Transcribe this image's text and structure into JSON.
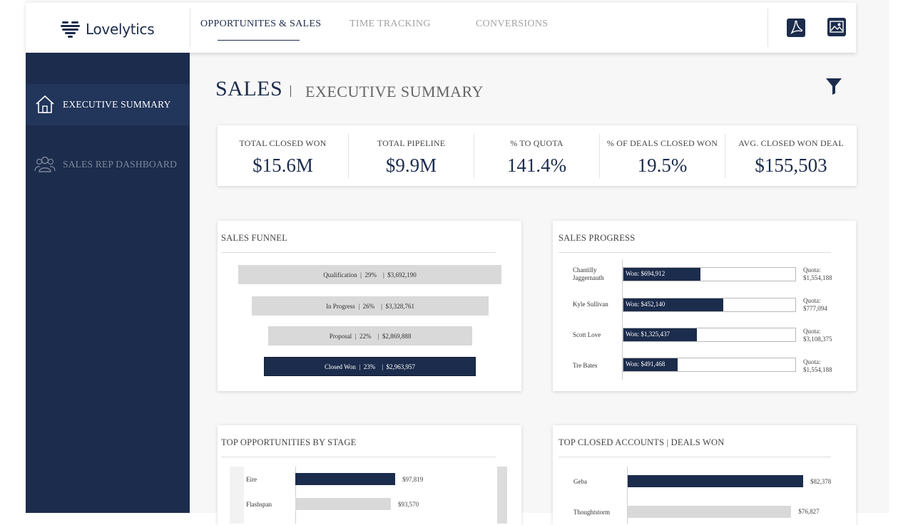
{
  "app": {
    "logo_text": "Lovelytics"
  },
  "nav": {
    "tabs": [
      {
        "label": "OPPORTUNITES & SALES",
        "active": true
      },
      {
        "label": "TIME TRACKING",
        "active": false
      },
      {
        "label": "CONVERSIONS",
        "active": false
      }
    ],
    "export_icons": [
      "pdf-icon",
      "image-icon"
    ]
  },
  "sidebar": {
    "items": [
      {
        "label": "EXECUTIVE SUMMARY",
        "icon": "home-icon",
        "active": true
      },
      {
        "label": "SALES REP DASHBOARD",
        "icon": "users-icon",
        "active": false
      }
    ]
  },
  "page": {
    "title": "SALES",
    "subtitle": "EXECUTIVE SUMMARY",
    "filter_icon": "filter-icon"
  },
  "kpis": [
    {
      "label": "TOTAL CLOSED WON",
      "value": "$15.6M"
    },
    {
      "label": "TOTAL PIPELINE",
      "value": "$9.9M"
    },
    {
      "label": "% TO QUOTA",
      "value": "141.4%"
    },
    {
      "label": "% OF DEALS CLOSED WON",
      "value": "19.5%"
    },
    {
      "label": "AVG. CLOSED WON DEAL",
      "value": "$155,503"
    }
  ],
  "funnel": {
    "title": "SALES FUNNEL",
    "stages": [
      {
        "stage": "Qualification",
        "pct": "29%",
        "amount": "$3,692,190",
        "highlight": false
      },
      {
        "stage": "In Progress",
        "pct": "26%",
        "amount": "$3,328,761",
        "highlight": false
      },
      {
        "stage": "Proposal",
        "pct": "22%",
        "amount": "$2,869,888",
        "highlight": false
      },
      {
        "stage": "Closed Won",
        "pct": "23%",
        "amount": "$2,963,957",
        "highlight": true
      }
    ]
  },
  "progress": {
    "title": "SALES PROGRESS",
    "reps": [
      {
        "name": "Chantilly Jaggernauth",
        "won": "Won: $694,912",
        "won_value": 694912,
        "quota_label": "Quota:",
        "quota": "$1,554,188",
        "quota_value": 1554188
      },
      {
        "name": "Kyle Sullivan",
        "won": "Won: $452,140",
        "won_value": 452140,
        "quota_label": "Quota:",
        "quota": "$777,094",
        "quota_value": 777094
      },
      {
        "name": "Scott Love",
        "won": "Won: $1,325,437",
        "won_value": 1325437,
        "quota_label": "Quota:",
        "quota": "$3,108,375",
        "quota_value": 3108375
      },
      {
        "name": "Tre Bates",
        "won": "Won: $491,468",
        "won_value": 491468,
        "quota_label": "Quota:",
        "quota": "$1,554,188",
        "quota_value": 1554188
      }
    ]
  },
  "opportunities": {
    "title": "TOP OPPORTUNITIES BY STAGE",
    "rows": [
      {
        "name": "Eire",
        "value_label": "$97,819",
        "value": 97819,
        "color": "#1c2c4c"
      },
      {
        "name": "Flashspan",
        "value_label": "$93,570",
        "value": 93570,
        "color": "#d9d9d9"
      }
    ]
  },
  "accounts": {
    "title": "TOP CLOSED ACCOUNTS | DEALS WON",
    "rows": [
      {
        "name": "Geba",
        "value_label": "$82,378",
        "value": 82378,
        "color": "#1c2c4c"
      },
      {
        "name": "Thoughtstorm",
        "value_label": "$76,827",
        "value": 76827,
        "color": "#d9d9d9"
      }
    ]
  }
}
